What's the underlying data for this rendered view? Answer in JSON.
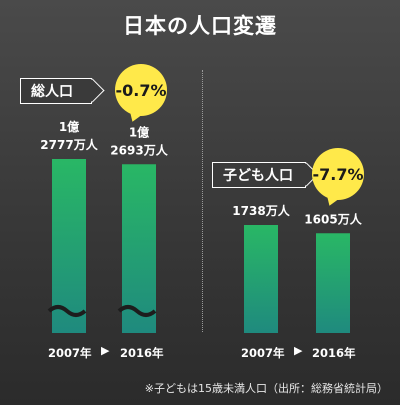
{
  "title": "日本の人口変遷",
  "footnote": "※子どもは15歳未満人口（出所：総務省統計局）",
  "arrow_glyph": "▶",
  "chart_data": [
    {
      "type": "bar",
      "panel_label": "総人口",
      "change_label": "-0.7%",
      "categories": [
        "2007年",
        "2016年"
      ],
      "values": [
        27770000,
        26930000
      ],
      "value_labels": [
        {
          "line1": "1億",
          "line2": "2777万人"
        },
        {
          "line1": "1億",
          "line2": "2693万人"
        }
      ],
      "axis_break": true,
      "colors": {
        "top": "#29b765",
        "bottom": "#1f8a7e"
      }
    },
    {
      "type": "bar",
      "panel_label": "子ども人口",
      "change_label": "-7.7%",
      "categories": [
        "2007年",
        "2016年"
      ],
      "values": [
        17380000,
        16050000
      ],
      "value_labels": [
        {
          "line1": "",
          "line2": "1738万人"
        },
        {
          "line1": "",
          "line2": "1605万人"
        }
      ],
      "axis_break": false,
      "colors": {
        "top": "#29b765",
        "bottom": "#1f8a7e"
      }
    }
  ]
}
